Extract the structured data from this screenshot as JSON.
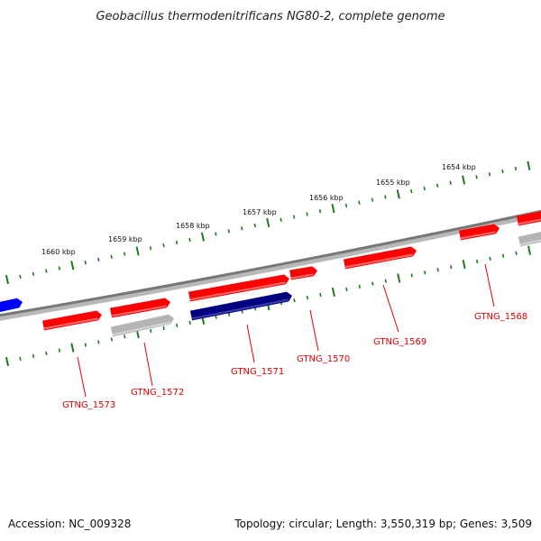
{
  "title": "Geobacillus thermodenitrificans NG80-2, complete genome",
  "accession": "Accession: NC_009328",
  "topology": "Topology: circular; Length: 3,550,319 bp; Genes: 3,509",
  "colors": {
    "forward_gene": "#ff0000",
    "forward_gene_highlight": "#ff6a6a",
    "reverse_gene": "#000080",
    "reverse_gene_highlight": "#3d3da8",
    "rna_gene": "#b4b4b4",
    "rna_gene_highlight": "#d4d4d4",
    "partial_blue_gene": "#0000ff",
    "backbone": "#777777",
    "ticks": "#1f7a1f",
    "label": "#e00000"
  },
  "scale": {
    "unit": "kbp",
    "labels": [
      "1654 kbp",
      "1655 kbp",
      "1656 kbp",
      "1657 kbp",
      "1658 kbp",
      "1659 kbp",
      "1660 kbp"
    ]
  },
  "genes": [
    {
      "name": "GTNG_1568"
    },
    {
      "name": "GTNG_1569"
    },
    {
      "name": "GTNG_1570"
    },
    {
      "name": "GTNG_1571"
    },
    {
      "name": "GTNG_1572"
    },
    {
      "name": "GTNG_1573"
    }
  ]
}
